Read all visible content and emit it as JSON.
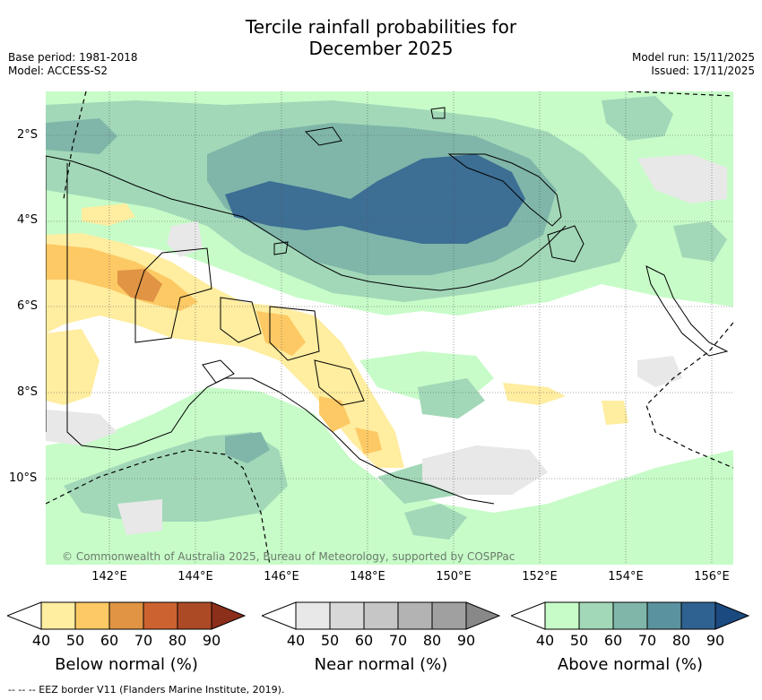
{
  "title_line1": "Tercile rainfall probabilities for",
  "title_line2": "December 2025",
  "meta_left": [
    "Base period: 1981-2018",
    "Model: ACCESS-S2"
  ],
  "meta_right": [
    "Model run: 15/11/2025",
    "Issued: 17/11/2025"
  ],
  "lat_ticks": [
    "2°S",
    "4°S",
    "6°S",
    "8°S",
    "10°S"
  ],
  "lon_ticks": [
    "142°E",
    "144°E",
    "146°E",
    "148°E",
    "150°E",
    "152°E",
    "154°E",
    "156°E"
  ],
  "copyright": "© Commonwealth of Australia 2025, Bureau of Meteorology, supported by COSPPac",
  "colorbars": [
    {
      "title": "Below normal (%)",
      "labels": [
        "40",
        "50",
        "60",
        "70",
        "80",
        "90"
      ],
      "colors": [
        "#ffffff",
        "#ffeda0",
        "#fdc964",
        "#e09444",
        "#cc6230",
        "#ad4a26",
        "#8c2f1a"
      ]
    },
    {
      "title": "Near normal (%)",
      "labels": [
        "40",
        "50",
        "60",
        "70",
        "80",
        "90"
      ],
      "colors": [
        "#ffffff",
        "#e8e8e8",
        "#d8d8d8",
        "#c6c6c6",
        "#b3b3b3",
        "#a0a0a0",
        "#888888"
      ]
    },
    {
      "title": "Above normal (%)",
      "labels": [
        "40",
        "50",
        "60",
        "70",
        "80",
        "90"
      ],
      "colors": [
        "#ffffff",
        "#c7fcc8",
        "#a2d8b8",
        "#7fb6a9",
        "#5b92a0",
        "#2f6290",
        "#1b4a80"
      ]
    }
  ],
  "footnote": "--  --  -- EEZ border V11 (Flanders Marine Institute, 2019)."
}
